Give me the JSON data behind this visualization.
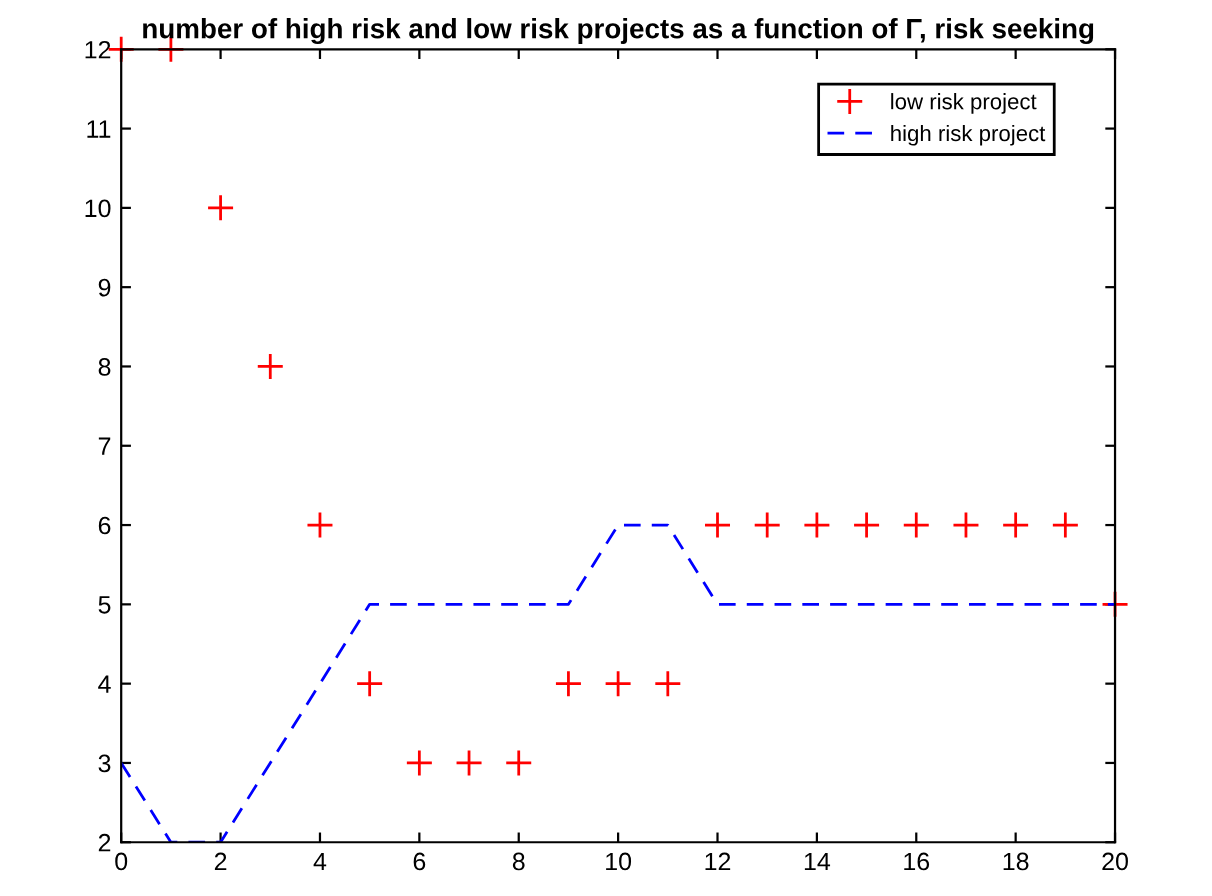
{
  "chart_data": {
    "type": "line",
    "title": "number of high risk and low risk projects as a function of Γ, risk seeking",
    "xlim": [
      0,
      20
    ],
    "ylim": [
      2,
      12
    ],
    "xticks": [
      0,
      2,
      4,
      6,
      8,
      10,
      12,
      14,
      16,
      18,
      20
    ],
    "yticks": [
      2,
      3,
      4,
      5,
      6,
      7,
      8,
      9,
      10,
      11,
      12
    ],
    "grid": false,
    "legend": "top right",
    "series": [
      {
        "name": "low risk project",
        "type": "scatter",
        "marker": "cross",
        "color": "#ff0000",
        "x": [
          0,
          1,
          2,
          3,
          4,
          5,
          6,
          7,
          8,
          9,
          10,
          11,
          12,
          13,
          14,
          15,
          16,
          17,
          18,
          19,
          20
        ],
        "values": [
          12,
          12,
          10,
          8,
          6,
          4,
          3,
          3,
          3,
          4,
          4,
          4,
          6,
          6,
          6,
          6,
          6,
          6,
          6,
          6,
          5
        ]
      },
      {
        "name": "high risk project",
        "line_style": "dashed",
        "color": "#0000ff",
        "x": [
          0,
          1,
          2,
          3,
          4,
          5,
          6,
          7,
          8,
          9,
          10,
          11,
          12,
          13,
          14,
          15,
          16,
          17,
          18,
          19,
          20
        ],
        "values": [
          3,
          2,
          2,
          3,
          4,
          5,
          5,
          5,
          5,
          5,
          6,
          6,
          5,
          5,
          5,
          5,
          5,
          5,
          5,
          5,
          5
        ]
      }
    ]
  }
}
